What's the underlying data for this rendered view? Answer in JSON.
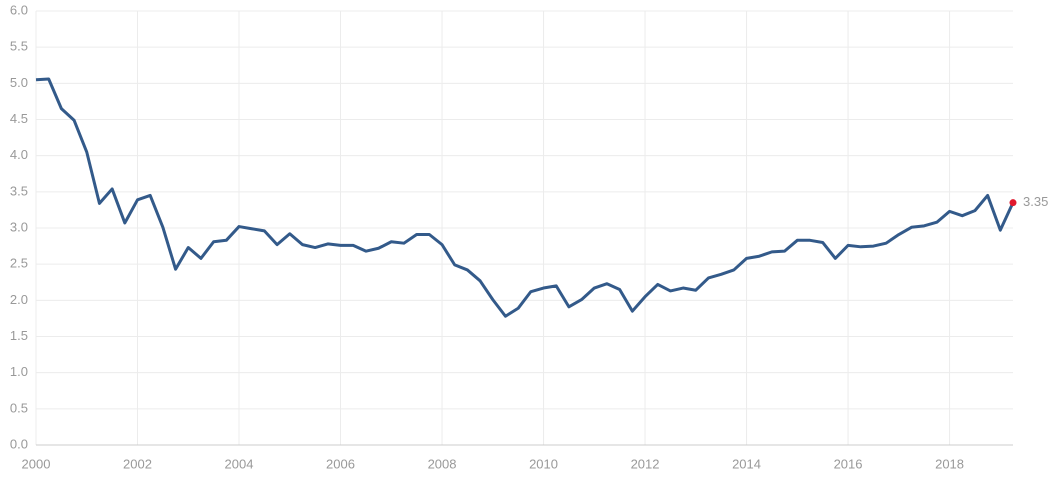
{
  "chart_data": {
    "type": "line",
    "x": [
      2000,
      2000.25,
      2000.5,
      2000.75,
      2001,
      2001.25,
      2001.5,
      2001.75,
      2002,
      2002.25,
      2002.5,
      2002.75,
      2003,
      2003.25,
      2003.5,
      2003.75,
      2004,
      2004.25,
      2004.5,
      2004.75,
      2005,
      2005.25,
      2005.5,
      2005.75,
      2006,
      2006.25,
      2006.5,
      2006.75,
      2007,
      2007.25,
      2007.5,
      2007.75,
      2008,
      2008.25,
      2008.5,
      2008.75,
      2009,
      2009.25,
      2009.5,
      2009.75,
      2010,
      2010.25,
      2010.5,
      2010.75,
      2011,
      2011.25,
      2011.5,
      2011.75,
      2012,
      2012.25,
      2012.5,
      2012.75,
      2013,
      2013.25,
      2013.5,
      2013.75,
      2014,
      2014.25,
      2014.5,
      2014.75,
      2015,
      2015.25,
      2015.5,
      2015.75,
      2016,
      2016.25,
      2016.5,
      2016.75,
      2017,
      2017.25,
      2017.5,
      2017.75,
      2018,
      2018.25,
      2018.5,
      2018.75,
      2019,
      2019.25
    ],
    "series": [
      {
        "color": "#335a8a",
        "values": [
          5.05,
          5.06,
          4.65,
          4.49,
          4.05,
          3.34,
          3.54,
          3.07,
          3.39,
          3.45,
          3.01,
          2.43,
          2.73,
          2.58,
          2.81,
          2.83,
          3.02,
          2.99,
          2.96,
          2.77,
          2.92,
          2.77,
          2.73,
          2.78,
          2.76,
          2.76,
          2.68,
          2.72,
          2.81,
          2.79,
          2.91,
          2.91,
          2.77,
          2.49,
          2.42,
          2.27,
          2.01,
          1.78,
          1.89,
          2.12,
          2.17,
          2.2,
          1.91,
          2.01,
          2.17,
          2.23,
          2.15,
          1.85,
          2.05,
          2.22,
          2.13,
          2.17,
          2.14,
          2.31,
          2.36,
          2.42,
          2.58,
          2.61,
          2.67,
          2.68,
          2.83,
          2.83,
          2.8,
          2.58,
          2.76,
          2.74,
          2.75,
          2.79,
          2.91,
          3.01,
          3.03,
          3.08,
          3.23,
          3.17,
          3.24,
          3.45,
          2.97,
          3.35
        ]
      }
    ],
    "last_point_color": "#e0182d",
    "xlim": [
      2000,
      2019.25
    ],
    "xticks": [
      2000,
      2002,
      2004,
      2006,
      2008,
      2010,
      2012,
      2014,
      2016,
      2018
    ],
    "ylim": [
      0,
      6
    ],
    "yticks": [
      {
        "value": 0,
        "label": "0.0"
      },
      0.5,
      {
        "value": 1,
        "label": "1.0"
      },
      1.5,
      {
        "value": 2,
        "label": "2.0"
      },
      2.5,
      {
        "value": 3,
        "label": "3.0"
      },
      3.5,
      {
        "value": 4,
        "label": "4.0"
      },
      4.5,
      {
        "value": 5,
        "label": "5.0"
      },
      5.5,
      {
        "value": 6,
        "label": "6.0"
      }
    ],
    "grid": true
  }
}
